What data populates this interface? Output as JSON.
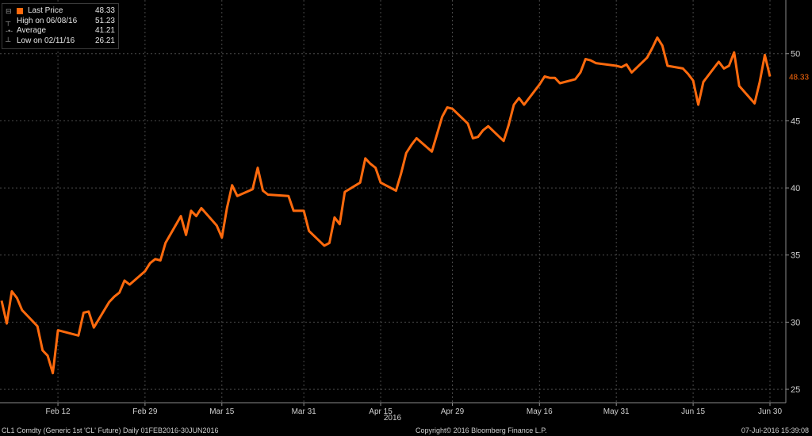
{
  "legend": {
    "rows": [
      {
        "label": "Last Price",
        "value": "48.33",
        "icon": "orange-square-icon"
      },
      {
        "label": "High on 06/08/16",
        "value": "51.23",
        "icon": "high-marker-icon"
      },
      {
        "label": "Average",
        "value": "41.21",
        "icon": "average-marker-icon"
      },
      {
        "label": "Low on 02/11/16",
        "value": "26.21",
        "icon": "low-marker-icon"
      }
    ]
  },
  "last_price_tag": "48.33",
  "footer": {
    "left": "CL1 Comdty (Generic 1st 'CL' Future)  Daily 01FEB2016-30JUN2016",
    "center": "Copyright© 2016 Bloomberg Finance L.P.",
    "right": "07-Jul-2016 15:39:08"
  },
  "colors": {
    "line": "#ff6a0d",
    "grid": "#4a4a4a",
    "background": "#000000",
    "text": "#cfcfcf"
  },
  "chart_data": {
    "type": "line",
    "title": "",
    "xlabel": "2016",
    "ylabel": "",
    "ylim": [
      24,
      54
    ],
    "grid": true,
    "legend_position": "top-left",
    "y_axis_side": "right",
    "yticks": [
      25,
      30,
      35,
      40,
      45,
      50
    ],
    "xticks": [
      "Feb 12",
      "Feb 29",
      "Mar 15",
      "Mar 31",
      "Apr 15",
      "Apr 29",
      "May 16",
      "May 31",
      "Jun 15",
      "Jun 30"
    ],
    "series": [
      {
        "name": "Last Price",
        "color": "#ff6a0d",
        "x": [
          "2016-02-01",
          "2016-02-02",
          "2016-02-03",
          "2016-02-04",
          "2016-02-05",
          "2016-02-08",
          "2016-02-09",
          "2016-02-10",
          "2016-02-11",
          "2016-02-12",
          "2016-02-16",
          "2016-02-17",
          "2016-02-18",
          "2016-02-19",
          "2016-02-22",
          "2016-02-23",
          "2016-02-24",
          "2016-02-25",
          "2016-02-26",
          "2016-02-29",
          "2016-03-01",
          "2016-03-02",
          "2016-03-03",
          "2016-03-04",
          "2016-03-07",
          "2016-03-08",
          "2016-03-09",
          "2016-03-10",
          "2016-03-11",
          "2016-03-14",
          "2016-03-15",
          "2016-03-16",
          "2016-03-17",
          "2016-03-18",
          "2016-03-21",
          "2016-03-22",
          "2016-03-23",
          "2016-03-24",
          "2016-03-28",
          "2016-03-29",
          "2016-03-30",
          "2016-03-31",
          "2016-04-01",
          "2016-04-04",
          "2016-04-05",
          "2016-04-06",
          "2016-04-07",
          "2016-04-08",
          "2016-04-11",
          "2016-04-12",
          "2016-04-13",
          "2016-04-14",
          "2016-04-15",
          "2016-04-18",
          "2016-04-19",
          "2016-04-20",
          "2016-04-21",
          "2016-04-22",
          "2016-04-25",
          "2016-04-26",
          "2016-04-27",
          "2016-04-28",
          "2016-04-29",
          "2016-05-02",
          "2016-05-03",
          "2016-05-04",
          "2016-05-05",
          "2016-05-06",
          "2016-05-09",
          "2016-05-10",
          "2016-05-11",
          "2016-05-12",
          "2016-05-13",
          "2016-05-16",
          "2016-05-17",
          "2016-05-18",
          "2016-05-19",
          "2016-05-20",
          "2016-05-23",
          "2016-05-24",
          "2016-05-25",
          "2016-05-26",
          "2016-05-27",
          "2016-05-31",
          "2016-06-01",
          "2016-06-02",
          "2016-06-03",
          "2016-06-06",
          "2016-06-07",
          "2016-06-08",
          "2016-06-09",
          "2016-06-10",
          "2016-06-13",
          "2016-06-14",
          "2016-06-15",
          "2016-06-16",
          "2016-06-17",
          "2016-06-20",
          "2016-06-21",
          "2016-06-22",
          "2016-06-23",
          "2016-06-24",
          "2016-06-27",
          "2016-06-28",
          "2016-06-29",
          "2016-06-30"
        ],
        "values": [
          31.6,
          29.9,
          32.3,
          31.8,
          30.9,
          29.7,
          27.9,
          27.5,
          26.2,
          29.4,
          29.0,
          30.7,
          30.8,
          29.6,
          31.5,
          31.9,
          32.2,
          33.1,
          32.8,
          33.8,
          34.4,
          34.7,
          34.6,
          35.9,
          37.9,
          36.5,
          38.3,
          37.9,
          38.5,
          37.2,
          36.3,
          38.5,
          40.2,
          39.4,
          39.9,
          41.5,
          39.8,
          39.5,
          39.4,
          38.3,
          38.3,
          38.3,
          36.8,
          35.7,
          35.9,
          37.8,
          37.3,
          39.7,
          40.4,
          42.2,
          41.8,
          41.5,
          40.4,
          39.8,
          41.1,
          42.6,
          43.2,
          43.7,
          42.7,
          44.0,
          45.3,
          46.0,
          45.9,
          44.8,
          43.7,
          43.8,
          44.3,
          44.6,
          43.5,
          44.7,
          46.2,
          46.7,
          46.2,
          47.7,
          48.3,
          48.2,
          48.2,
          47.8,
          48.1,
          48.6,
          49.6,
          49.5,
          49.3,
          49.1,
          49.0,
          49.2,
          48.6,
          49.7,
          50.4,
          51.2,
          50.6,
          49.1,
          48.9,
          48.5,
          48.0,
          46.2,
          47.9,
          49.4,
          48.9,
          49.1,
          50.1,
          47.6,
          46.3,
          47.9,
          49.9,
          48.3
        ]
      }
    ]
  }
}
